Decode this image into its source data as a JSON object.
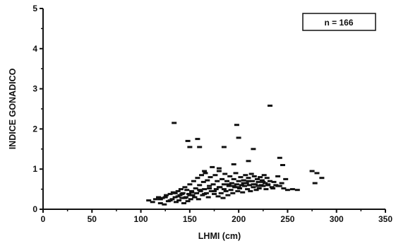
{
  "chart_data": {
    "type": "scatter",
    "title": "",
    "xlabel": "LHMI (cm)",
    "ylabel": "INDICE GONADICO",
    "xlim": [
      0,
      350
    ],
    "ylim": [
      0,
      5
    ],
    "xticks": [
      "0",
      "50",
      "100",
      "150",
      "200",
      "250",
      "300",
      "350"
    ],
    "yticks": [
      "0",
      "1",
      "2",
      "3",
      "4",
      "5"
    ],
    "grid": false,
    "legend": {
      "text": "n = 166",
      "placement": "top-right"
    },
    "marker": "dash",
    "color": "#111111",
    "series": [
      {
        "x": [
          108,
          112,
          115,
          118,
          120,
          122,
          124,
          126,
          128,
          130,
          132,
          133,
          135,
          136,
          138,
          139,
          140,
          141,
          142,
          143,
          144,
          145,
          146,
          147,
          148,
          149,
          150,
          151,
          152,
          153,
          154,
          155,
          156,
          157,
          158,
          159,
          160,
          161,
          162,
          163,
          164,
          165,
          166,
          167,
          168,
          169,
          170,
          171,
          172,
          173,
          174,
          175,
          176,
          177,
          178,
          179,
          180,
          181,
          182,
          183,
          184,
          185,
          186,
          187,
          188,
          189,
          190,
          191,
          192,
          193,
          194,
          195,
          196,
          197,
          198,
          199,
          200,
          201,
          202,
          203,
          204,
          205,
          206,
          207,
          208,
          209,
          210,
          211,
          212,
          213,
          214,
          215,
          216,
          217,
          218,
          219,
          220,
          221,
          222,
          223,
          224,
          225,
          226,
          227,
          228,
          229,
          230,
          232,
          234,
          236,
          238,
          240,
          242,
          244,
          246,
          248,
          250,
          255,
          260,
          275,
          278,
          280,
          285,
          134,
          148,
          150,
          158,
          160,
          185,
          198,
          200,
          215,
          232,
          242,
          245,
          120,
          125,
          130,
          135,
          138,
          142,
          145,
          150,
          152,
          155,
          160,
          165,
          170,
          175,
          180,
          185,
          190,
          195,
          200,
          205,
          210,
          215,
          220,
          225,
          230,
          235,
          240,
          165,
          180,
          195,
          210
        ],
        "y": [
          0.22,
          0.18,
          0.25,
          0.3,
          0.15,
          0.28,
          0.12,
          0.35,
          0.2,
          0.38,
          0.25,
          0.42,
          0.3,
          0.18,
          0.45,
          0.22,
          0.35,
          0.5,
          0.28,
          0.4,
          0.15,
          0.55,
          0.3,
          0.48,
          0.2,
          0.38,
          0.62,
          0.25,
          0.45,
          0.35,
          0.7,
          0.3,
          0.52,
          0.4,
          0.78,
          0.25,
          0.6,
          0.45,
          0.85,
          0.35,
          0.68,
          0.5,
          0.9,
          0.4,
          0.72,
          0.3,
          0.58,
          0.8,
          0.45,
          1.05,
          0.62,
          0.38,
          0.85,
          0.5,
          0.7,
          0.32,
          0.95,
          0.55,
          0.4,
          0.75,
          0.28,
          0.62,
          0.88,
          0.45,
          0.7,
          0.35,
          0.58,
          0.82,
          0.48,
          0.65,
          0.4,
          0.75,
          0.55,
          0.9,
          0.62,
          0.45,
          0.7,
          0.52,
          0.8,
          0.6,
          0.42,
          0.72,
          0.58,
          0.85,
          0.65,
          0.5,
          0.78,
          0.6,
          0.45,
          0.88,
          0.7,
          0.55,
          0.82,
          0.62,
          0.48,
          0.75,
          0.68,
          0.52,
          0.8,
          0.6,
          0.72,
          0.58,
          0.85,
          0.65,
          0.5,
          0.78,
          0.62,
          0.7,
          0.55,
          0.68,
          0.6,
          0.82,
          0.58,
          0.65,
          0.52,
          0.75,
          0.48,
          0.5,
          0.48,
          0.95,
          0.65,
          0.9,
          0.78,
          2.15,
          1.7,
          1.55,
          1.75,
          1.55,
          1.55,
          2.1,
          1.78,
          1.5,
          2.58,
          1.28,
          1.1,
          0.25,
          0.3,
          0.22,
          0.4,
          0.32,
          0.38,
          0.28,
          0.35,
          0.42,
          0.3,
          0.48,
          0.38,
          0.52,
          0.45,
          0.55,
          0.5,
          0.62,
          0.58,
          0.55,
          0.65,
          0.7,
          0.62,
          0.58,
          0.68,
          0.6,
          0.52,
          0.58,
          0.95,
          1.02,
          1.12,
          1.2
        ]
      }
    ]
  }
}
